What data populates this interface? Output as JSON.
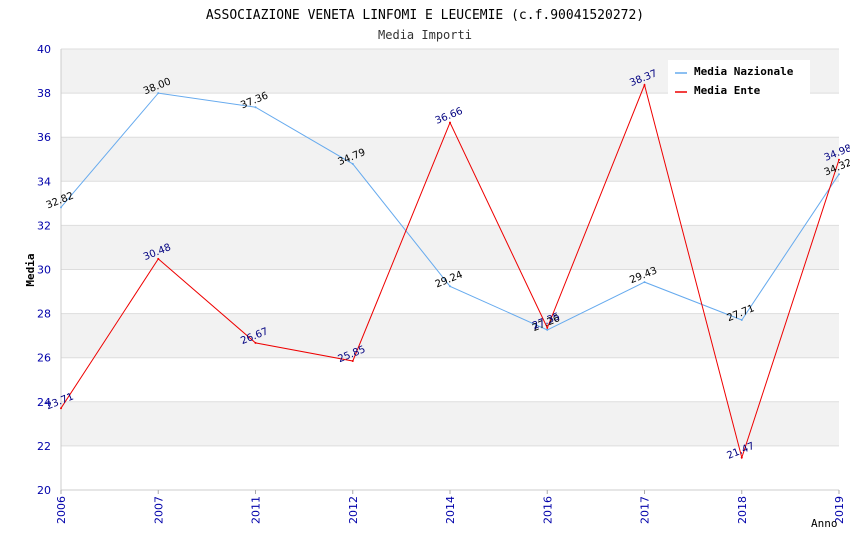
{
  "chart_data": {
    "type": "line",
    "title": "ASSOCIAZIONE VENETA LINFOMI E LEUCEMIE (c.f.90041520272)",
    "subtitle": "Media Importi",
    "xlabel": "Anno",
    "ylabel": "Media",
    "ylim": [
      20,
      40
    ],
    "yticks": [
      "20",
      "22",
      "24",
      "26",
      "28",
      "30",
      "32",
      "34",
      "36",
      "38",
      "40"
    ],
    "categories": [
      "2006",
      "2007",
      "2011",
      "2012",
      "2014",
      "2016",
      "2017",
      "2018",
      "2019"
    ],
    "grid": "horizontal bands",
    "legend_position": "top-right",
    "series": [
      {
        "name": "Media Nazionale",
        "color": "#66aaee",
        "label_color": "#000000",
        "values": [
          32.82,
          38.0,
          37.36,
          34.79,
          29.24,
          27.26,
          29.43,
          27.71,
          34.32
        ],
        "labels": [
          "32.82",
          "38.00",
          "37.36",
          "34.79",
          "29.24",
          "27.26",
          "29.43",
          "27.71",
          "34.32"
        ]
      },
      {
        "name": "Media Ente",
        "color": "#ee0000",
        "label_color": "#000080",
        "values": [
          23.71,
          30.48,
          26.67,
          25.85,
          36.66,
          27.35,
          38.37,
          21.47,
          34.98
        ],
        "labels": [
          "23.71",
          "30.48",
          "26.67",
          "25.85",
          "36.66",
          "27.35",
          "38.37",
          "21.47",
          "34.98"
        ]
      }
    ]
  }
}
